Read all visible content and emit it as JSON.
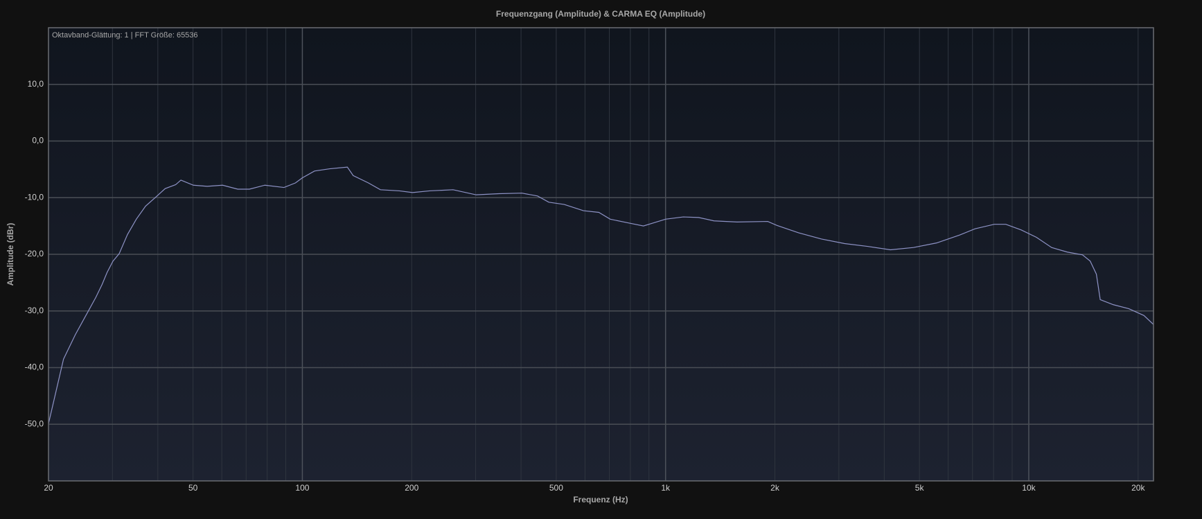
{
  "chart_data": {
    "type": "line",
    "title": "Frequenzgang (Amplitude) & CARMA EQ (Amplitude)",
    "annotation": "Oktavband-Glättung: 1 | FFT Größe: 65536",
    "x_label": "Frequenz (Hz)",
    "y_label": "Amplitude (dBr)",
    "x": [
      20,
      22,
      23.7,
      25.4,
      27,
      28.1,
      29,
      30.1,
      31.3,
      33,
      34.9,
      37,
      39.8,
      41.9,
      44.8,
      46.3,
      50.1,
      54.7,
      60.3,
      66.4,
      71.5,
      78.8,
      89,
      95.7,
      100,
      108,
      119,
      133,
      138,
      152,
      164,
      185,
      201,
      224,
      260,
      301,
      348,
      402,
      444,
      477,
      526,
      594,
      655,
      704,
      796,
      869,
      921,
      1000,
      1119,
      1233,
      1359,
      1573,
      1911,
      2026,
      2323,
      2687,
      3110,
      3597,
      4160,
      4815,
      5572,
      6451,
      7112,
      8034,
      8643,
      9529,
      10500,
      11560,
      12760,
      14060,
      14760,
      15350,
      15730,
      17100,
      18840,
      20750,
      22050
    ],
    "values": [
      -49.9,
      -38.5,
      -34.2,
      -30.7,
      -27.6,
      -25.3,
      -23.2,
      -21.2,
      -19.9,
      -16.5,
      -13.8,
      -11.5,
      -9.7,
      -8.4,
      -7.7,
      -6.9,
      -7.8,
      -8.0,
      -7.8,
      -8.5,
      -8.5,
      -7.8,
      -8.2,
      -7.4,
      -6.5,
      -5.3,
      -4.9,
      -4.6,
      -6.1,
      -7.4,
      -8.6,
      -8.8,
      -9.1,
      -8.8,
      -8.6,
      -9.5,
      -9.3,
      -9.2,
      -9.7,
      -10.8,
      -11.2,
      -12.3,
      -12.6,
      -13.8,
      -14.5,
      -15.0,
      -14.5,
      -13.8,
      -13.4,
      -13.5,
      -14.1,
      -14.3,
      -14.2,
      -14.9,
      -16.2,
      -17.3,
      -18.1,
      -18.6,
      -19.2,
      -18.8,
      -18.0,
      -16.6,
      -15.5,
      -14.7,
      -14.7,
      -15.7,
      -17.0,
      -18.8,
      -19.6,
      -20.1,
      -21.2,
      -23.5,
      -28.0,
      -28.9,
      -29.6,
      -30.8,
      -32.4
    ],
    "color": "#8e93c6",
    "x_scale": "log",
    "xlim": [
      20,
      22050
    ],
    "xticks": [
      20,
      50,
      100,
      200,
      500,
      {
        "value": 1000,
        "label": "1k"
      },
      {
        "value": 2000,
        "label": "2k"
      },
      {
        "value": 5000,
        "label": "5k"
      },
      {
        "value": 10000,
        "label": "10k"
      },
      {
        "value": 20000,
        "label": "20k"
      }
    ],
    "xgrid": [
      20,
      30,
      40,
      50,
      60,
      70,
      80,
      90,
      100,
      200,
      300,
      400,
      500,
      600,
      700,
      800,
      900,
      1000,
      2000,
      3000,
      4000,
      5000,
      6000,
      7000,
      8000,
      9000,
      10000,
      20000
    ],
    "ylim": [
      -60,
      20
    ],
    "yticks": [
      {
        "value": -50,
        "label": "-50,0"
      },
      {
        "value": -40,
        "label": "-40,0"
      },
      {
        "value": -30,
        "label": "-30,0"
      },
      {
        "value": -20,
        "label": "-20,0"
      },
      {
        "value": -10,
        "label": "-10,0"
      },
      {
        "value": 0,
        "label": "0,0"
      },
      {
        "value": 10,
        "label": "10,0"
      }
    ],
    "grid": true
  }
}
